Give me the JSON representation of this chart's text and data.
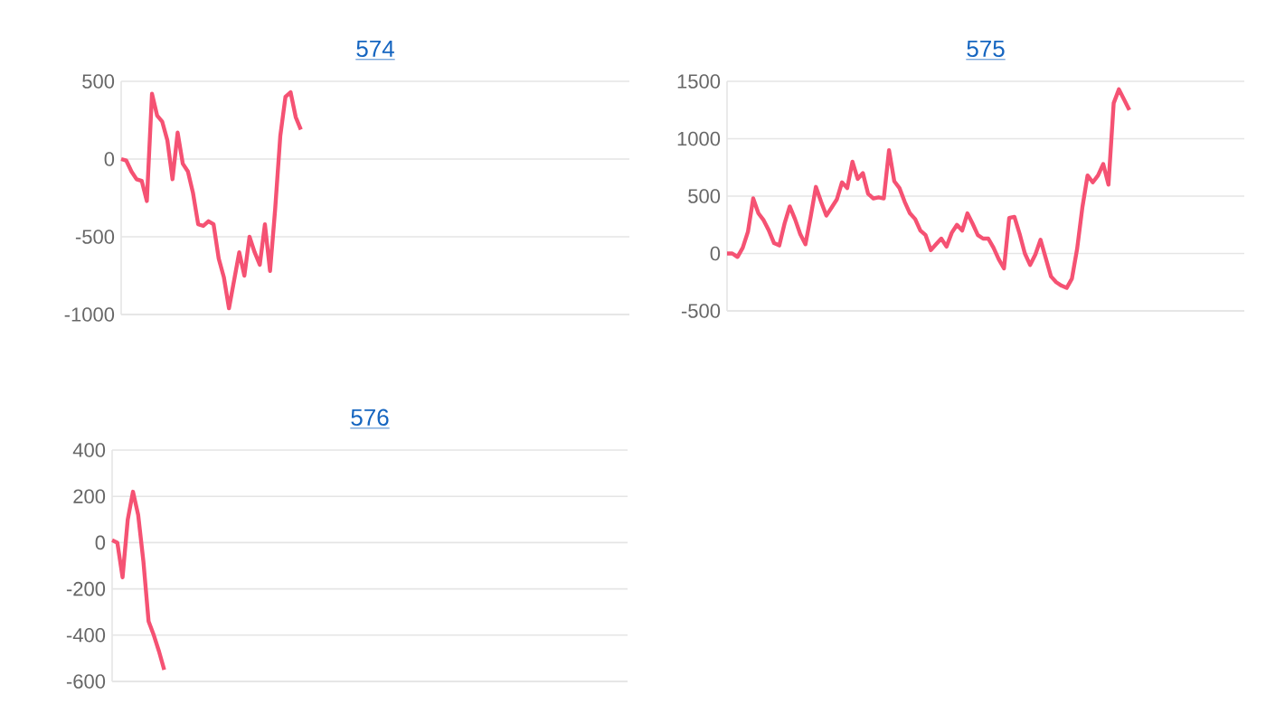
{
  "chart_data": [
    {
      "type": "line",
      "title": "574",
      "color": "#f55273",
      "grid": "y",
      "tick_labels": "y",
      "ylim": [
        -1000,
        500
      ],
      "yticks": [
        -1000,
        -500,
        0,
        500
      ],
      "categories": [
        null,
        null,
        null,
        null,
        null,
        null,
        null,
        null,
        null,
        null,
        null,
        null,
        null,
        null,
        null,
        null,
        null,
        null,
        null,
        null,
        null,
        null,
        null,
        null,
        null,
        null,
        null,
        null,
        null,
        null,
        null,
        null,
        null,
        null,
        null,
        null,
        null,
        null,
        null,
        null,
        null,
        null,
        null,
        null,
        null,
        null,
        null,
        null,
        null,
        null,
        null,
        null,
        null,
        null,
        null,
        null,
        null,
        null,
        null,
        null,
        null,
        null,
        null,
        null,
        null,
        null,
        null,
        null,
        null,
        null,
        null,
        null,
        null,
        null,
        null,
        null,
        null,
        null,
        null,
        null,
        null,
        null,
        null,
        null,
        null,
        null,
        null,
        null,
        null,
        null,
        null,
        null,
        null,
        null,
        null,
        null,
        null,
        null,
        null,
        null
      ],
      "values": [
        0,
        -10,
        -80,
        -130,
        -140,
        -270,
        420,
        280,
        240,
        120,
        -130,
        170,
        -30,
        -80,
        -220,
        -420,
        -430,
        -400,
        -420,
        -640,
        -760,
        -960,
        -780,
        -600,
        -750,
        -500,
        -600,
        -680,
        -420,
        -720,
        -320,
        150,
        400,
        430,
        270,
        190,
        null,
        null,
        null,
        null,
        null,
        null,
        null,
        null,
        null,
        null,
        null,
        null,
        null,
        null,
        null,
        null,
        null,
        null,
        null,
        null,
        null,
        null,
        null,
        null,
        null,
        null,
        null,
        null,
        null,
        null,
        null,
        null,
        null,
        null,
        null,
        null,
        null,
        null,
        null,
        null,
        null,
        null,
        null,
        null,
        null,
        null,
        null,
        null,
        null,
        null,
        null,
        null,
        null,
        null,
        null,
        null,
        null,
        null,
        null,
        null,
        null,
        null,
        null,
        null
      ]
    },
    {
      "type": "line",
      "title": "575",
      "color": "#f55273",
      "grid": "y",
      "tick_labels": "y",
      "ylim": [
        -500,
        1500
      ],
      "yticks": [
        -500,
        0,
        500,
        1000,
        1500
      ],
      "categories": [
        null,
        null,
        null,
        null,
        null,
        null,
        null,
        null,
        null,
        null,
        null,
        null,
        null,
        null,
        null,
        null,
        null,
        null,
        null,
        null,
        null,
        null,
        null,
        null,
        null,
        null,
        null,
        null,
        null,
        null,
        null,
        null,
        null,
        null,
        null,
        null,
        null,
        null,
        null,
        null,
        null,
        null,
        null,
        null,
        null,
        null,
        null,
        null,
        null,
        null,
        null,
        null,
        null,
        null,
        null,
        null,
        null,
        null,
        null,
        null,
        null,
        null,
        null,
        null,
        null,
        null,
        null,
        null,
        null,
        null,
        null,
        null,
        null,
        null,
        null,
        null,
        null,
        null,
        null,
        null,
        null,
        null,
        null,
        null,
        null,
        null,
        null,
        null,
        null,
        null,
        null,
        null,
        null,
        null,
        null,
        null,
        null,
        null,
        null,
        null
      ],
      "values": [
        0,
        0,
        -30,
        50,
        190,
        480,
        350,
        290,
        200,
        90,
        70,
        260,
        410,
        300,
        170,
        80,
        320,
        580,
        450,
        330,
        400,
        470,
        620,
        570,
        800,
        650,
        700,
        520,
        480,
        490,
        480,
        900,
        630,
        570,
        450,
        350,
        300,
        200,
        160,
        30,
        80,
        130,
        60,
        180,
        250,
        200,
        350,
        260,
        160,
        130,
        130,
        50,
        -50,
        -130,
        310,
        320,
        170,
        0,
        -100,
        -10,
        120,
        -40,
        -200,
        -250,
        -280,
        -300,
        -220,
        40,
        400,
        680,
        620,
        680,
        780,
        600,
        1310,
        1430,
        1340,
        1250,
        null,
        null,
        null,
        null,
        null,
        null,
        null,
        null,
        null,
        null,
        null,
        null,
        null,
        null,
        null,
        null,
        null,
        null,
        null,
        null,
        null,
        null
      ]
    },
    {
      "type": "line",
      "title": "576",
      "color": "#f55273",
      "grid": "y",
      "tick_labels": "y",
      "ylim": [
        -600,
        400
      ],
      "yticks": [
        -600,
        -400,
        -200,
        0,
        200,
        400
      ],
      "categories": [
        null,
        null,
        null,
        null,
        null,
        null,
        null,
        null,
        null,
        null,
        null,
        null,
        null,
        null,
        null,
        null,
        null,
        null,
        null,
        null,
        null,
        null,
        null,
        null,
        null,
        null,
        null,
        null,
        null,
        null,
        null,
        null,
        null,
        null,
        null,
        null,
        null,
        null,
        null,
        null,
        null,
        null,
        null,
        null,
        null,
        null,
        null,
        null,
        null,
        null,
        null,
        null,
        null,
        null,
        null,
        null,
        null,
        null,
        null,
        null,
        null,
        null,
        null,
        null,
        null,
        null,
        null,
        null,
        null,
        null,
        null,
        null,
        null,
        null,
        null,
        null,
        null,
        null,
        null,
        null,
        null,
        null,
        null,
        null,
        null,
        null,
        null,
        null,
        null,
        null,
        null,
        null,
        null,
        null,
        null,
        null,
        null,
        null,
        null,
        null
      ],
      "values": [
        10,
        0,
        -150,
        100,
        220,
        120,
        -80,
        -340,
        -400,
        -470,
        -550,
        null,
        null,
        null,
        null,
        null,
        null,
        null,
        null,
        null,
        null,
        null,
        null,
        null,
        null,
        null,
        null,
        null,
        null,
        null,
        null,
        null,
        null,
        null,
        null,
        null,
        null,
        null,
        null,
        null,
        null,
        null,
        null,
        null,
        null,
        null,
        null,
        null,
        null,
        null,
        null,
        null,
        null,
        null,
        null,
        null,
        null,
        null,
        null,
        null,
        null,
        null,
        null,
        null,
        null,
        null,
        null,
        null,
        null,
        null,
        null,
        null,
        null,
        null,
        null,
        null,
        null,
        null,
        null,
        null,
        null,
        null,
        null,
        null,
        null,
        null,
        null,
        null,
        null,
        null,
        null,
        null,
        null,
        null,
        null,
        null,
        null,
        null,
        null,
        null
      ]
    }
  ]
}
